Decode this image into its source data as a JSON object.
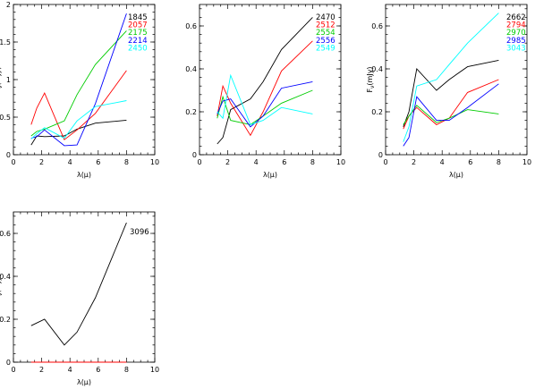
{
  "chart_data": [
    {
      "type": "line",
      "xlabel": "λ(μ)",
      "ylabel": "F_ν(mJy)",
      "xlim": [
        0,
        10
      ],
      "ylim": [
        0,
        2
      ],
      "xticks": [
        0,
        2,
        4,
        6,
        8,
        10
      ],
      "yticks": [
        0,
        0.5,
        1,
        1.5,
        2
      ],
      "xtick_labels": [
        "0",
        "2",
        "4",
        "6",
        "8",
        "10"
      ],
      "ytick_labels": [
        "0",
        "0.5",
        "1",
        "1.5",
        "2"
      ],
      "series": [
        {
          "name": "1845",
          "color": "#000000",
          "x": [
            1.25,
            1.65,
            2.2,
            3.6,
            4.5,
            5.8,
            8.0
          ],
          "y": [
            0.13,
            0.25,
            0.24,
            0.25,
            0.34,
            0.42,
            0.46
          ]
        },
        {
          "name": "2057",
          "color": "#ff0000",
          "x": [
            1.25,
            1.65,
            2.2,
            3.6,
            4.5,
            5.8,
            8.0
          ],
          "y": [
            0.4,
            0.62,
            0.82,
            0.2,
            0.33,
            0.55,
            1.12
          ]
        },
        {
          "name": "2175",
          "color": "#00cc00",
          "x": [
            1.25,
            1.65,
            2.2,
            3.6,
            4.5,
            5.8,
            8.0
          ],
          "y": [
            0.25,
            0.31,
            0.34,
            0.45,
            0.8,
            1.2,
            1.65
          ]
        },
        {
          "name": "2214",
          "color": "#0000ff",
          "x": [
            1.25,
            1.65,
            2.2,
            3.6,
            4.5,
            5.8,
            8.0
          ],
          "y": [
            0.22,
            0.24,
            0.33,
            0.12,
            0.13,
            0.68,
            1.88
          ]
        },
        {
          "name": "2450",
          "color": "#00ffff",
          "x": [
            1.25,
            1.65,
            2.2,
            3.6,
            4.5,
            5.8,
            8.0
          ],
          "y": [
            0.21,
            0.28,
            0.36,
            0.22,
            0.45,
            0.64,
            0.72
          ]
        }
      ]
    },
    {
      "type": "line",
      "xlabel": "λ(μ)",
      "ylabel": "",
      "xlim": [
        0,
        10
      ],
      "ylim": [
        0,
        0.7
      ],
      "xticks": [
        0,
        2,
        4,
        6,
        8,
        10
      ],
      "yticks": [
        0,
        0.2,
        0.4,
        0.6
      ],
      "xtick_labels": [
        "0",
        "2",
        "4",
        "6",
        "8",
        "10"
      ],
      "ytick_labels": [
        "0",
        "0.2",
        "0.4",
        "0.6"
      ],
      "series": [
        {
          "name": "2470",
          "color": "#000000",
          "x": [
            1.25,
            1.65,
            2.2,
            3.6,
            4.5,
            5.8,
            8.0
          ],
          "y": [
            0.05,
            0.08,
            0.21,
            0.26,
            0.34,
            0.49,
            0.64
          ]
        },
        {
          "name": "2512",
          "color": "#ff0000",
          "x": [
            1.25,
            1.65,
            2.2,
            3.6,
            4.5,
            5.8,
            8.0
          ],
          "y": [
            0.18,
            0.32,
            0.24,
            0.09,
            0.2,
            0.39,
            0.53
          ]
        },
        {
          "name": "2554",
          "color": "#00cc00",
          "x": [
            1.25,
            1.65,
            2.2,
            3.6,
            4.5,
            5.8,
            8.0
          ],
          "y": [
            0.17,
            0.27,
            0.16,
            0.14,
            0.18,
            0.24,
            0.3
          ]
        },
        {
          "name": "2556",
          "color": "#0000ff",
          "x": [
            1.25,
            1.65,
            2.2,
            3.6,
            4.5,
            5.8,
            8.0
          ],
          "y": [
            0.19,
            0.25,
            0.26,
            0.13,
            0.18,
            0.31,
            0.34
          ]
        },
        {
          "name": "2549",
          "color": "#00ffff",
          "x": [
            1.25,
            1.65,
            2.2,
            3.6,
            4.5,
            5.8,
            8.0
          ],
          "y": [
            0.2,
            0.17,
            0.37,
            0.14,
            0.16,
            0.22,
            0.19
          ]
        }
      ]
    },
    {
      "type": "line",
      "xlabel": "λ(μ)",
      "ylabel": "F_ν(mJy)",
      "xlim": [
        0,
        10
      ],
      "ylim": [
        0,
        0.7
      ],
      "xticks": [
        0,
        2,
        4,
        6,
        8,
        10
      ],
      "yticks": [
        0,
        0.2,
        0.4,
        0.6
      ],
      "xtick_labels": [
        "0",
        "2",
        "4",
        "6",
        "8",
        "10"
      ],
      "ytick_labels": [
        "0",
        "0.2",
        "0.4",
        "0.6"
      ],
      "series": [
        {
          "name": "2662",
          "color": "#000000",
          "x": [
            1.25,
            1.65,
            2.2,
            3.6,
            4.5,
            5.8,
            8.0
          ],
          "y": [
            0.13,
            0.2,
            0.4,
            0.3,
            0.35,
            0.41,
            0.44
          ]
        },
        {
          "name": "2794",
          "color": "#ff0000",
          "x": [
            1.25,
            1.65,
            2.2,
            3.6,
            4.5,
            5.8,
            8.0
          ],
          "y": [
            0.12,
            0.18,
            0.22,
            0.14,
            0.17,
            0.29,
            0.35
          ]
        },
        {
          "name": "2970",
          "color": "#00cc00",
          "x": [
            1.25,
            1.65,
            2.2,
            3.6,
            4.5,
            5.8,
            8.0
          ],
          "y": [
            0.14,
            0.18,
            0.23,
            0.15,
            0.17,
            0.21,
            0.19
          ]
        },
        {
          "name": "2985",
          "color": "#0000ff",
          "x": [
            1.25,
            1.65,
            2.2,
            3.6,
            4.5,
            5.8,
            8.0
          ],
          "y": [
            0.04,
            0.08,
            0.27,
            0.16,
            0.16,
            0.22,
            0.33
          ]
        },
        {
          "name": "3043",
          "color": "#00ffff",
          "x": [
            1.25,
            1.65,
            2.2,
            3.6,
            4.5,
            5.8,
            8.0
          ],
          "y": [
            0.06,
            0.13,
            0.32,
            0.35,
            0.42,
            0.52,
            0.66
          ]
        }
      ]
    },
    {
      "type": "line",
      "xlabel": "λ(μ)",
      "ylabel": "F_ν(mJy)",
      "xlim": [
        0,
        10
      ],
      "ylim": [
        0,
        0.7
      ],
      "xticks": [
        0,
        2,
        4,
        6,
        8,
        10
      ],
      "yticks": [
        0,
        0.2,
        0.4,
        0.6
      ],
      "xtick_labels": [
        "0",
        "2",
        "4",
        "6",
        "8",
        "10"
      ],
      "ytick_labels": [
        "0",
        "0.2",
        "0.4",
        "0.6"
      ],
      "series": [
        {
          "name": "3096",
          "color": "#000000",
          "x": [
            1.25,
            2.2,
            3.6,
            4.5,
            5.8,
            8.0
          ],
          "y": [
            0.17,
            0.2,
            0.08,
            0.14,
            0.3,
            0.65
          ]
        },
        {
          "name": "",
          "color": "#ff0000",
          "x": [
            1.25,
            8.0
          ],
          "y": [
            0.0,
            0.0
          ]
        }
      ]
    }
  ]
}
